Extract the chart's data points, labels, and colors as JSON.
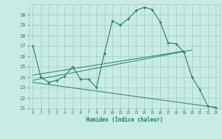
{
  "xlabel": "Humidex (Indice chaleur)",
  "bg_color": "#c8ece4",
  "line_color": "#1a7a6a",
  "xlim": [
    -0.5,
    23.5
  ],
  "ylim": [
    21,
    31
  ],
  "yticks": [
    21,
    22,
    23,
    24,
    25,
    26,
    27,
    28,
    29,
    30
  ],
  "xticks": [
    0,
    1,
    2,
    3,
    4,
    5,
    6,
    7,
    8,
    9,
    10,
    11,
    12,
    13,
    14,
    15,
    16,
    17,
    18,
    19,
    20,
    21,
    22,
    23
  ],
  "curve1_x": [
    0,
    1,
    2,
    3,
    4,
    5,
    6,
    7,
    8,
    9,
    10,
    11,
    12,
    13,
    14,
    15,
    16,
    17,
    18,
    19,
    20,
    21,
    22,
    23
  ],
  "curve1_y": [
    27.0,
    24.0,
    23.5,
    23.7,
    24.1,
    25.0,
    23.8,
    23.8,
    23.0,
    26.3,
    29.4,
    29.0,
    29.6,
    30.4,
    30.7,
    30.5,
    29.3,
    27.3,
    27.2,
    26.4,
    24.0,
    22.8,
    21.2,
    21.1
  ],
  "line1_x": [
    0,
    19
  ],
  "line1_y": [
    24.2,
    26.5
  ],
  "line2_x": [
    0,
    20
  ],
  "line2_y": [
    23.7,
    26.6
  ],
  "line3_x": [
    0,
    23
  ],
  "line3_y": [
    23.5,
    21.1
  ],
  "grid_color": "#a0c8c0",
  "font_color": "#1a7a6a"
}
